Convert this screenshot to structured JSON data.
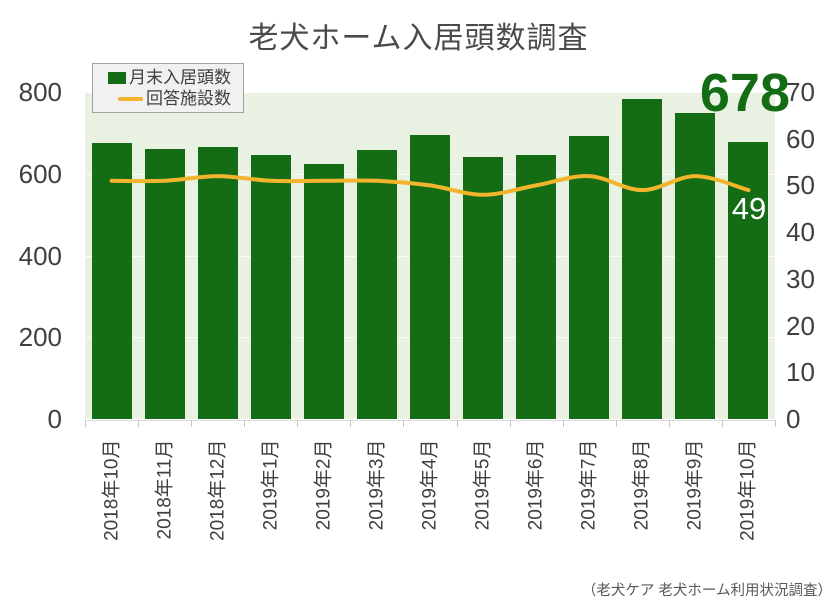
{
  "title": "老犬ホーム入居頭数調査",
  "legend": {
    "bar_label": "月末入居頭数",
    "line_label": "回答施設数"
  },
  "annotations": {
    "last_bar_value": "678",
    "last_line_value": "49"
  },
  "source_caption": "（老犬ケア 老犬ホーム利用状況調査）",
  "colors": {
    "bar_green": "#146c14",
    "line_yellow": "#f2b42c",
    "plot_background": "#e9f1e2",
    "annotation_green": "#146c14",
    "axis_text": "#3f3f3f"
  },
  "chart_data": {
    "type": "bar",
    "subtype": "combo-bar-line",
    "title": "老犬ホーム入居頭数調査",
    "categories": [
      "2018年10月",
      "2018年11月",
      "2018年12月",
      "2019年1月",
      "2019年2月",
      "2019年3月",
      "2019年4月",
      "2019年5月",
      "2019年6月",
      "2019年7月",
      "2019年8月",
      "2019年9月",
      "2019年10月"
    ],
    "series": [
      {
        "name": "月末入居頭数",
        "type": "bar",
        "axis": "left",
        "color": "#146c14",
        "values": [
          676,
          660,
          666,
          646,
          624,
          658,
          695,
          641,
          646,
          693,
          782,
          748,
          678
        ]
      },
      {
        "name": "回答施設数",
        "type": "line",
        "axis": "right",
        "color": "#f2b42c",
        "values": [
          51,
          51,
          52,
          51,
          51,
          51,
          50,
          48,
          50,
          52,
          49,
          52,
          49
        ]
      }
    ],
    "left_axis": {
      "range": [
        0,
        800
      ],
      "ticks": [
        0,
        200,
        400,
        600,
        800
      ]
    },
    "right_axis": {
      "range": [
        0,
        70
      ],
      "ticks": [
        0,
        10,
        20,
        30,
        40,
        50,
        60,
        70
      ]
    },
    "legend_position": "top-left",
    "grid": true,
    "annotations": [
      {
        "target": "last-bar",
        "text": "678"
      },
      {
        "target": "last-line-point",
        "text": "49"
      }
    ]
  }
}
